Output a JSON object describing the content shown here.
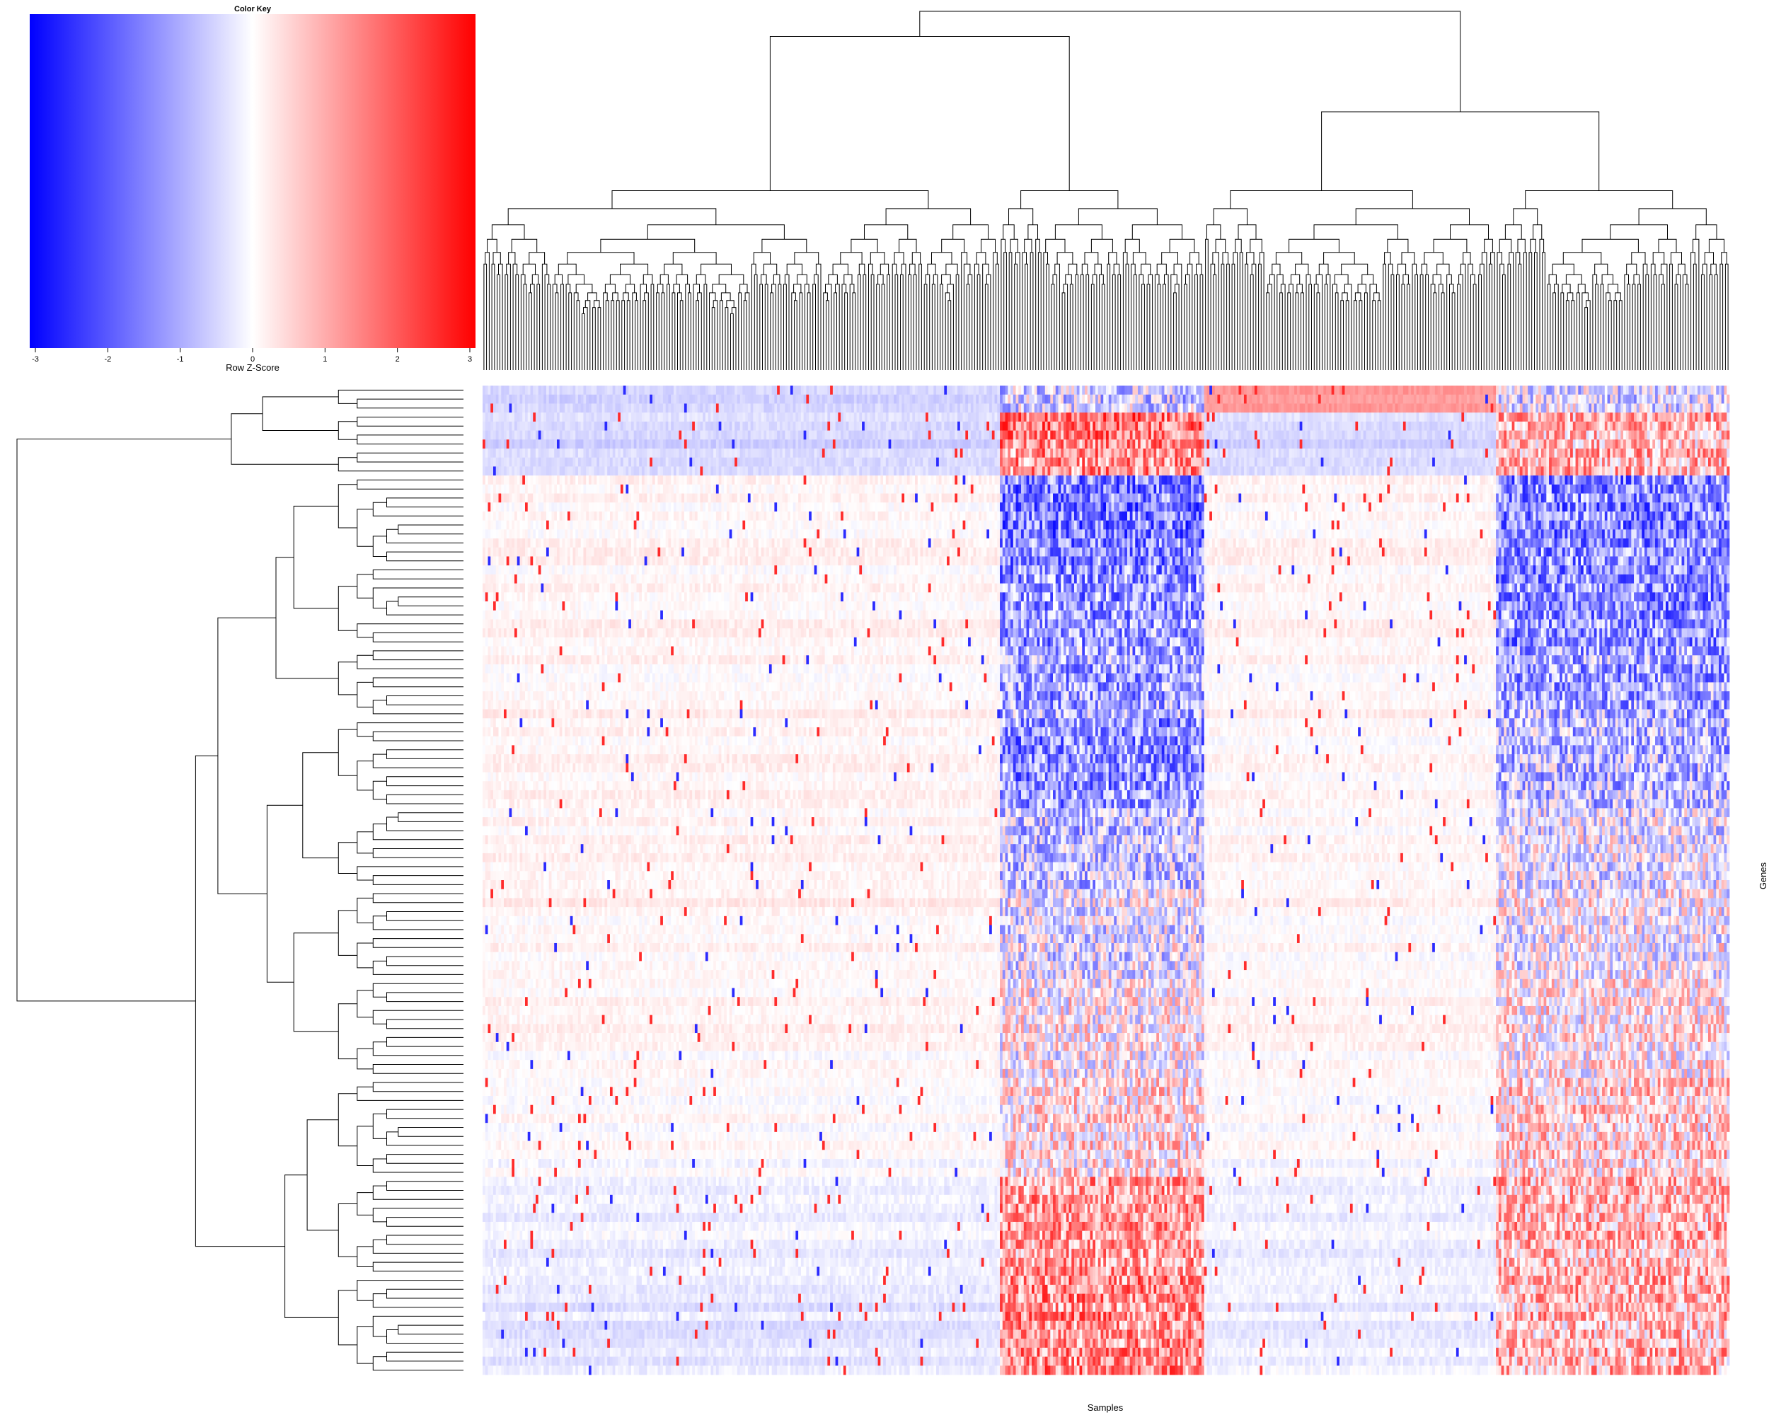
{
  "colors": {
    "low": "#0000ff",
    "mid": "#ffffff",
    "high": "#ff0000",
    "background": "#ffffff",
    "dendrogram": "#000000"
  },
  "chart_data": {
    "type": "heatmap",
    "title": "",
    "xlabel": "Samples",
    "ylabel": "Genes",
    "row_count": 110,
    "column_count": 470,
    "column_clusters": [
      {
        "count": 195,
        "profile": [
          -0.5,
          -0.5,
          -0.5,
          0.1,
          0.1,
          0.1,
          0.1,
          0.15,
          0.15,
          0.1,
          0.0,
          -0.2,
          -0.3
        ]
      },
      {
        "count": 77,
        "profile": [
          -0.5,
          1.5,
          1.2,
          -1.5,
          -1.2,
          -1.0,
          -1.3,
          -0.6,
          -0.2,
          0.1,
          0.3,
          1.1,
          1.3
        ]
      },
      {
        "count": 110,
        "profile": [
          1.2,
          -0.5,
          -0.5,
          0.1,
          0.1,
          0.1,
          0.05,
          0.1,
          0.1,
          0.1,
          0.0,
          -0.2,
          -0.2
        ]
      },
      {
        "count": 88,
        "profile": [
          -0.3,
          0.8,
          0.8,
          -1.4,
          -1.3,
          -1.0,
          -0.8,
          -0.2,
          0.0,
          0.2,
          0.5,
          0.8,
          0.8
        ]
      }
    ],
    "color_key": {
      "title": "Color Key",
      "xlabel": "Row Z-Score",
      "range": [
        -3,
        3
      ],
      "ticks": [
        "-3",
        "-2",
        "-1",
        "0",
        "1",
        "2",
        "3"
      ]
    }
  }
}
